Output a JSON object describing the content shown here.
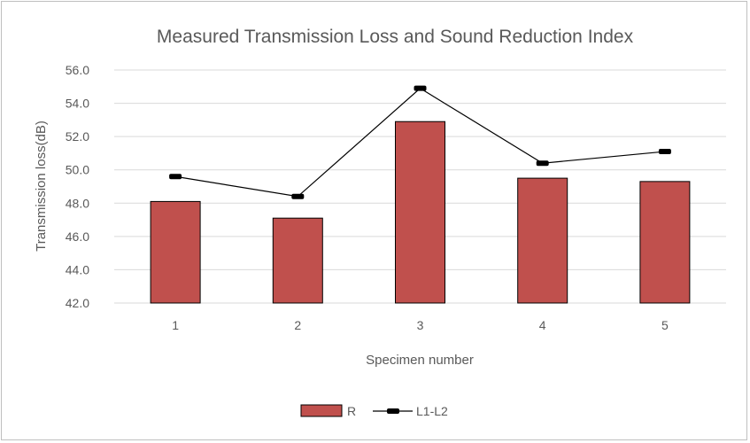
{
  "chart_data": {
    "type": "bar",
    "title": "Measured Transmission Loss and Sound  Reduction Index",
    "xlabel": "Specimen number",
    "ylabel": "Transmission loss(dB)",
    "categories": [
      "1",
      "2",
      "3",
      "4",
      "5"
    ],
    "ylim": [
      42.0,
      56.0
    ],
    "yticks": [
      "42.0",
      "44.0",
      "46.0",
      "48.0",
      "50.0",
      "52.0",
      "54.0",
      "56.0"
    ],
    "grid": true,
    "legend_position": "bottom",
    "series": [
      {
        "name": "R",
        "type": "bar",
        "color": "#c0504d",
        "values": [
          48.1,
          47.1,
          52.9,
          49.5,
          49.3
        ]
      },
      {
        "name": "L1-L2",
        "type": "line",
        "color": "#000000",
        "values": [
          49.6,
          48.4,
          54.9,
          50.4,
          51.1
        ]
      }
    ]
  }
}
